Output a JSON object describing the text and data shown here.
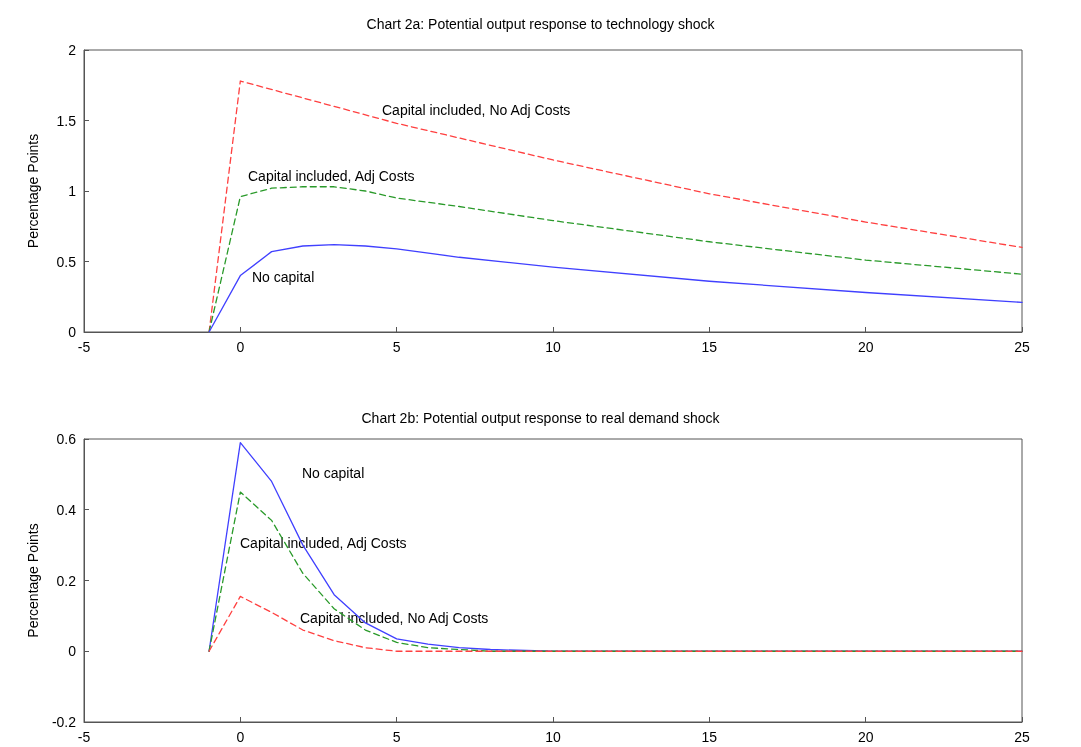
{
  "chart_data": [
    {
      "type": "line",
      "title": "Chart 2a: Potential output response to technology shock",
      "ylabel": "Percentage Points",
      "xlim": [
        -5,
        25
      ],
      "xticks": [
        -5,
        0,
        5,
        10,
        15,
        20,
        25
      ],
      "ylim": [
        0,
        2
      ],
      "yticks": [
        0,
        0.5,
        1,
        1.5,
        2
      ],
      "series": [
        {
          "name": "Capital included, No Adj Costs",
          "color": "#ff4040",
          "line_style": "dashed",
          "x": [
            -1,
            0,
            5,
            10,
            15,
            20,
            25
          ],
          "values": [
            0,
            1.78,
            1.48,
            1.22,
            0.98,
            0.78,
            0.6
          ]
        },
        {
          "name": "Capital included, Adj Costs",
          "color": "#2a9a2a",
          "line_style": "dashed",
          "x": [
            -1,
            0,
            1,
            2,
            3,
            4,
            5,
            7,
            10,
            15,
            20,
            25
          ],
          "values": [
            0,
            0.96,
            1.02,
            1.03,
            1.03,
            1.0,
            0.95,
            0.89,
            0.79,
            0.64,
            0.51,
            0.41
          ]
        },
        {
          "name": "No capital",
          "color": "#4040ff",
          "line_style": "solid",
          "x": [
            -1,
            0,
            1,
            2,
            3,
            4,
            5,
            7,
            10,
            15,
            20,
            25
          ],
          "values": [
            0,
            0.4,
            0.57,
            0.61,
            0.62,
            0.61,
            0.59,
            0.53,
            0.46,
            0.36,
            0.28,
            0.21
          ]
        }
      ]
    },
    {
      "type": "line",
      "title": "Chart 2b: Potential output response to real demand shock",
      "ylabel": "Percentage Points",
      "xlim": [
        -5,
        25
      ],
      "xticks": [
        -5,
        0,
        5,
        10,
        15,
        20,
        25
      ],
      "ylim": [
        -0.2,
        0.6
      ],
      "yticks": [
        -0.2,
        0,
        0.2,
        0.4,
        0.6
      ],
      "series": [
        {
          "name": "No capital",
          "color": "#4040ff",
          "line_style": "solid",
          "x": [
            -1,
            0,
            1,
            2,
            3,
            4,
            5,
            6,
            7,
            8,
            10,
            25
          ],
          "values": [
            0,
            0.59,
            0.48,
            0.3,
            0.16,
            0.08,
            0.035,
            0.02,
            0.01,
            0.005,
            0,
            0
          ]
        },
        {
          "name": "Capital included, Adj Costs",
          "color": "#2a9a2a",
          "line_style": "dashed",
          "x": [
            -1,
            0,
            1,
            2,
            3,
            4,
            5,
            6,
            8,
            10,
            25
          ],
          "values": [
            0,
            0.45,
            0.37,
            0.22,
            0.12,
            0.06,
            0.025,
            0.01,
            0,
            0,
            0
          ]
        },
        {
          "name": "Capital included, No Adj Costs",
          "color": "#ff4040",
          "line_style": "dashed",
          "x": [
            -1,
            0,
            1,
            2,
            3,
            4,
            5,
            10,
            25
          ],
          "values": [
            0,
            0.155,
            0.11,
            0.06,
            0.03,
            0.01,
            0,
            0,
            0
          ]
        }
      ]
    }
  ]
}
